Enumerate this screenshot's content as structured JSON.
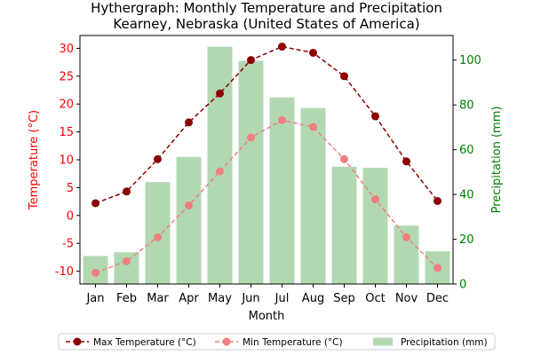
{
  "chart_data": {
    "type": "bar",
    "title_line1": "Hythergraph: Monthly Temperature and Precipitation",
    "title_line2": "Kearney, Nebraska (United States of America)",
    "xlabel": "Month",
    "ylabel_left": "Temperature (°C)",
    "ylabel_right": "Precipitation (mm)",
    "categories": [
      "Jan",
      "Feb",
      "Mar",
      "Apr",
      "May",
      "Jun",
      "Jul",
      "Aug",
      "Sep",
      "Oct",
      "Nov",
      "Dec"
    ],
    "y_left_lim": [
      -12.3,
      32.3
    ],
    "y_left_ticks": [
      -10,
      -5,
      0,
      5,
      10,
      15,
      20,
      25,
      30
    ],
    "y_right_lim": [
      0,
      111
    ],
    "y_right_ticks": [
      0,
      20,
      40,
      60,
      80,
      100
    ],
    "grid": false,
    "legend_position": "bottom",
    "series": [
      {
        "name": "Max Temperature (°C)",
        "kind": "line",
        "axis": "left",
        "color": "#8b0000",
        "style": "dashed",
        "values": [
          2.2,
          4.3,
          10.1,
          16.7,
          21.9,
          27.9,
          30.3,
          29.2,
          25.0,
          17.8,
          9.7,
          2.6
        ]
      },
      {
        "name": "Min Temperature (°C)",
        "kind": "line",
        "axis": "left",
        "color": "#f08080",
        "style": "dashed",
        "values": [
          -10.3,
          -8.2,
          -3.9,
          1.8,
          7.9,
          14.0,
          17.1,
          15.9,
          10.1,
          2.9,
          -3.9,
          -9.4
        ]
      },
      {
        "name": "Precipitation (mm)",
        "kind": "bar",
        "axis": "right",
        "color": "#b2d8b2",
        "values": [
          12.5,
          14.2,
          45.5,
          56.8,
          106.0,
          99.7,
          83.3,
          78.6,
          52.4,
          51.9,
          26.1,
          14.6
        ]
      }
    ]
  },
  "colors": {
    "left_axis": "#ff0000",
    "right_axis": "#008000"
  }
}
